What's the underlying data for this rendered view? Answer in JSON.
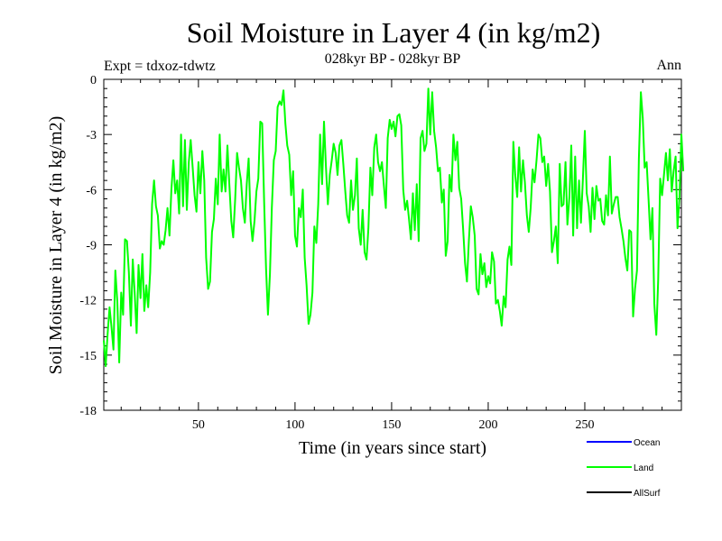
{
  "chart_data": {
    "type": "line",
    "title": "Soil Moisture in Layer 4 (in kg/m2)",
    "subtitle": "028kyr BP - 028kyr BP",
    "experiment_label": "Expt = tdxoz-tdwtz",
    "season_label": "Ann",
    "xlabel": "Time (in years since start)",
    "ylabel": "Soil Moisture in Layer 4 (in kg/m2)",
    "xlim": [
      1,
      300
    ],
    "ylim": [
      -18,
      0
    ],
    "x_ticks": [
      50,
      100,
      150,
      200,
      250
    ],
    "y_ticks": [
      0,
      -3,
      -6,
      -9,
      -12,
      -15,
      -18
    ],
    "grid": false,
    "legend_position": "bottom-right",
    "series": [
      {
        "name": "Ocean",
        "color": "#0000ff",
        "values": []
      },
      {
        "name": "Land",
        "color": "#00ff00",
        "x_start": 1,
        "x_step": 1,
        "values": [
          -14.2,
          -15.6,
          -13.8,
          -12.4,
          -13.5,
          -14.7,
          -10.4,
          -12.1,
          -15.4,
          -11.6,
          -12.8,
          -8.7,
          -8.8,
          -10.5,
          -13.4,
          -9.8,
          -11.6,
          -13.8,
          -10.1,
          -11.9,
          -9.5,
          -12.6,
          -11.2,
          -12.4,
          -10.5,
          -6.8,
          -5.5,
          -6.9,
          -7.4,
          -9.2,
          -8.8,
          -9.0,
          -8.2,
          -7.0,
          -8.5,
          -6.0,
          -4.4,
          -6.2,
          -5.5,
          -7.3,
          -3.0,
          -6.9,
          -3.3,
          -7.1,
          -4.5,
          -3.3,
          -4.8,
          -6.3,
          -7.2,
          -4.5,
          -6.2,
          -3.9,
          -5.5,
          -9.7,
          -11.4,
          -11.0,
          -8.3,
          -7.6,
          -5.4,
          -6.8,
          -3.0,
          -6.1,
          -4.9,
          -6.1,
          -3.6,
          -5.7,
          -7.7,
          -8.6,
          -6.5,
          -4.0,
          -4.8,
          -5.5,
          -7.0,
          -7.8,
          -5.7,
          -4.3,
          -7.7,
          -8.8,
          -7.7,
          -6.1,
          -5.4,
          -2.3,
          -2.4,
          -6.7,
          -10.3,
          -12.8,
          -10.6,
          -7.0,
          -4.4,
          -3.9,
          -1.5,
          -1.2,
          -1.4,
          -0.6,
          -2.4,
          -3.6,
          -4.1,
          -6.3,
          -5.0,
          -8.5,
          -9.1,
          -7.0,
          -7.5,
          -6.0,
          -9.7,
          -11.2,
          -13.3,
          -12.8,
          -11.6,
          -8.0,
          -8.9,
          -6.8,
          -3.0,
          -5.7,
          -2.3,
          -4.8,
          -6.8,
          -5.2,
          -4.4,
          -3.5,
          -4.0,
          -5.2,
          -3.6,
          -3.3,
          -4.6,
          -6.1,
          -7.4,
          -7.8,
          -5.5,
          -7.1,
          -6.3,
          -4.3,
          -8.1,
          -9.0,
          -7.1,
          -9.4,
          -9.8,
          -8.1,
          -4.8,
          -6.3,
          -3.7,
          -3.0,
          -4.5,
          -5.0,
          -4.5,
          -5.8,
          -7.0,
          -3.2,
          -2.2,
          -2.7,
          -2.3,
          -3.1,
          -2.0,
          -1.9,
          -2.5,
          -6.0,
          -7.1,
          -6.6,
          -7.6,
          -8.7,
          -6.2,
          -8.2,
          -5.7,
          -8.8,
          -3.2,
          -2.8,
          -3.9,
          -3.5,
          -0.5,
          -3.0,
          -0.7,
          -2.8,
          -3.7,
          -5.0,
          -4.8,
          -6.7,
          -6.0,
          -9.6,
          -8.8,
          -5.2,
          -6.1,
          -3.0,
          -4.4,
          -3.4,
          -5.9,
          -6.5,
          -8.1,
          -10.0,
          -11.0,
          -8.8,
          -6.9,
          -7.5,
          -8.5,
          -11.4,
          -11.7,
          -9.5,
          -10.6,
          -10.0,
          -11.3,
          -10.7,
          -11.1,
          -9.4,
          -9.9,
          -12.2,
          -12.0,
          -12.6,
          -13.4,
          -11.8,
          -12.4,
          -9.8,
          -9.1,
          -10.1,
          -3.4,
          -5.2,
          -6.4,
          -3.7,
          -6.1,
          -4.4,
          -5.6,
          -7.4,
          -8.3,
          -7.0,
          -4.9,
          -5.6,
          -4.4,
          -3.0,
          -3.2,
          -4.5,
          -4.2,
          -5.8,
          -4.6,
          -6.1,
          -9.4,
          -8.8,
          -8.0,
          -10.0,
          -4.6,
          -6.9,
          -6.8,
          -4.5,
          -7.9,
          -6.4,
          -3.6,
          -8.5,
          -4.2,
          -8.1,
          -5.5,
          -7.8,
          -5.5,
          -2.8,
          -6.2,
          -6.9,
          -8.3,
          -5.9,
          -7.6,
          -5.8,
          -6.6,
          -6.5,
          -7.7,
          -7.9,
          -6.3,
          -7.4,
          -4.2,
          -7.3,
          -6.8,
          -6.4,
          -6.4,
          -7.5,
          -8.1,
          -8.8,
          -9.7,
          -10.4,
          -8.2,
          -8.3,
          -12.9,
          -11.4,
          -10.4,
          -4.3,
          -0.7,
          -2.1,
          -4.8,
          -4.5,
          -6.5,
          -8.7,
          -7.0,
          -12.2,
          -13.9,
          -10.9,
          -5.4,
          -6.3,
          -5.2,
          -4.0,
          -5.5,
          -3.8,
          -6.1,
          -5.0,
          -4.2,
          -8.1,
          -6.4,
          -3.0,
          -5.0
        ]
      },
      {
        "name": "AllSurf",
        "color": "#000000",
        "values": []
      }
    ]
  }
}
